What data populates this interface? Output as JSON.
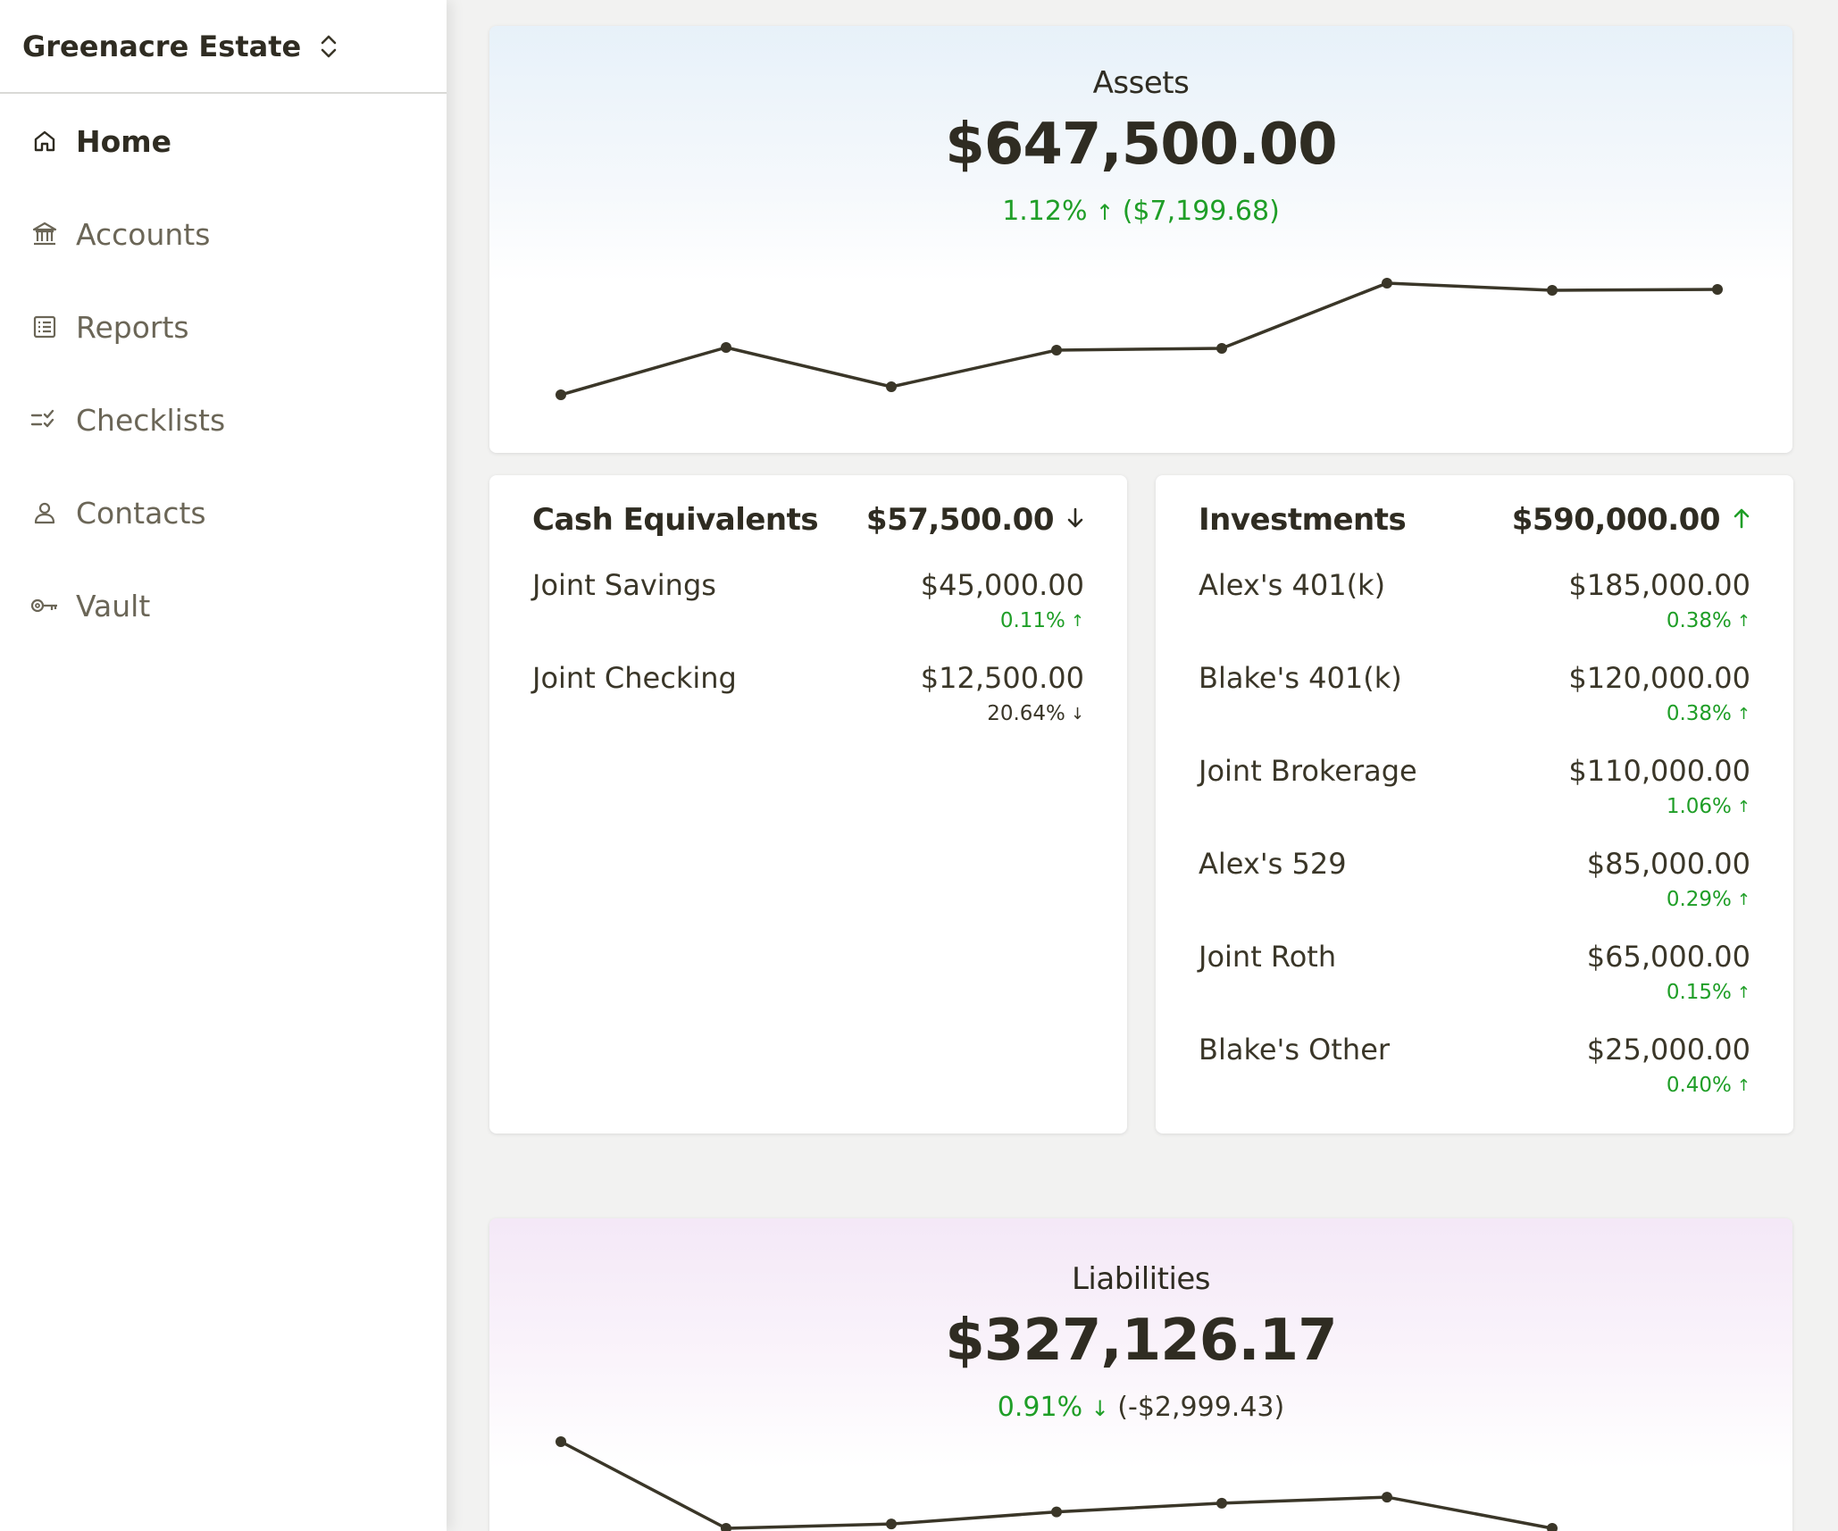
{
  "sidebar": {
    "estate_name": "Greenacre Estate",
    "nav": [
      {
        "label": "Home",
        "icon": "home-icon",
        "active": true
      },
      {
        "label": "Accounts",
        "icon": "bank-icon",
        "active": false
      },
      {
        "label": "Reports",
        "icon": "report-icon",
        "active": false
      },
      {
        "label": "Checklists",
        "icon": "checklist-icon",
        "active": false
      },
      {
        "label": "Contacts",
        "icon": "person-icon",
        "active": false
      },
      {
        "label": "Vault",
        "icon": "key-icon",
        "active": false
      }
    ]
  },
  "assets": {
    "title": "Assets",
    "value": "$647,500.00",
    "change_pct": "1.12%",
    "change_amt": "($7,199.68)",
    "direction": "up",
    "sparkline": [
      0,
      0.53,
      0.09,
      0.5,
      0.52,
      1.25,
      1.17,
      1.18
    ]
  },
  "cash": {
    "title": "Cash Equivalents",
    "total": "$57,500.00",
    "direction": "down",
    "rows": [
      {
        "name": "Joint Savings",
        "amount": "$45,000.00",
        "pct": "0.11%",
        "direction": "up"
      },
      {
        "name": "Joint Checking",
        "amount": "$12,500.00",
        "pct": "20.64%",
        "direction": "down"
      }
    ]
  },
  "investments": {
    "title": "Investments",
    "total": "$590,000.00",
    "direction": "up",
    "rows": [
      {
        "name": "Alex's 401(k)",
        "amount": "$185,000.00",
        "pct": "0.38%",
        "direction": "up"
      },
      {
        "name": "Blake's 401(k)",
        "amount": "$120,000.00",
        "pct": "0.38%",
        "direction": "up"
      },
      {
        "name": "Joint Brokerage",
        "amount": "$110,000.00",
        "pct": "1.06%",
        "direction": "up"
      },
      {
        "name": "Alex's 529",
        "amount": "$85,000.00",
        "pct": "0.29%",
        "direction": "up"
      },
      {
        "name": "Joint Roth",
        "amount": "$65,000.00",
        "pct": "0.15%",
        "direction": "up"
      },
      {
        "name": "Blake's Other",
        "amount": "$25,000.00",
        "pct": "0.40%",
        "direction": "up"
      }
    ]
  },
  "liabilities": {
    "title": "Liabilities",
    "value": "$327,126.17",
    "change_pct": "0.91%",
    "change_amt": "(-$2,999.43)",
    "direction": "down",
    "sparkline": [
      1.0,
      0.0,
      0.05,
      0.19,
      0.29,
      0.36,
      0.0
    ]
  },
  "colors": {
    "positive": "#1f9e27",
    "text": "#2f2c22",
    "line": "#3a3628"
  }
}
